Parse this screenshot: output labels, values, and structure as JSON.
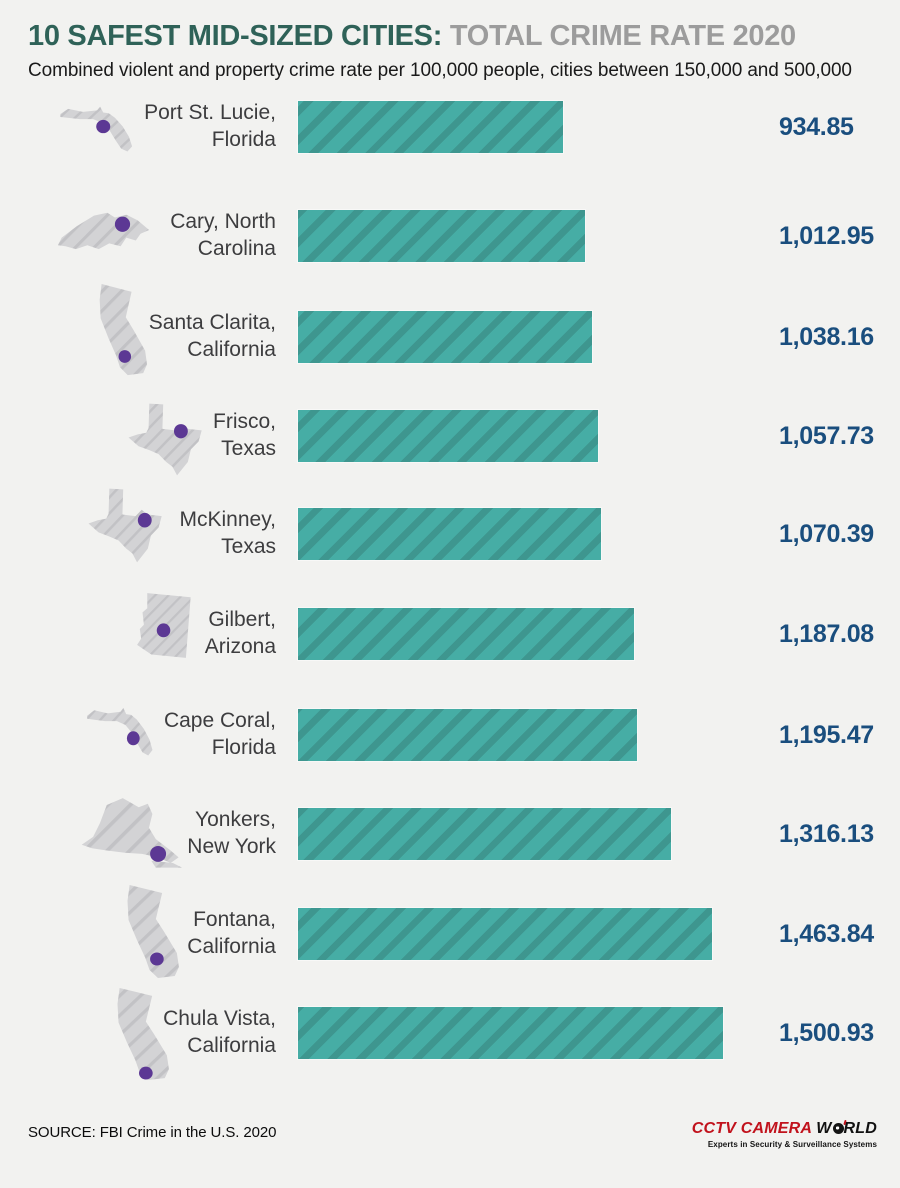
{
  "header": {
    "title_primary": "10 SAFEST MID-SIZED CITIES:",
    "title_secondary": " TOTAL CRIME RATE 2020",
    "subtitle": "Combined violent and property crime rate per 100,000 people, cities between 150,000 and 500,000",
    "title_primary_color": "#2f6258",
    "title_secondary_color": "#9c9c9c"
  },
  "chart_data": {
    "type": "bar",
    "orientation": "horizontal",
    "title": "10 SAFEST MID-SIZED CITIES: TOTAL CRIME RATE 2020",
    "subtitle": "Combined violent and property crime rate per 100,000 people, cities between 150,000 and 500,000",
    "xlabel": "",
    "ylabel": "",
    "xlim": [
      0,
      1500.93
    ],
    "grid": false,
    "legend": false,
    "categories": [
      "Port St. Lucie, Florida",
      "Cary, North Carolina",
      "Santa Clarita, California",
      "Frisco, Texas",
      "McKinney, Texas",
      "Gilbert, Arizona",
      "Cape Coral, Florida",
      "Yonkers, New York",
      "Fontana, California",
      "Chula Vista, California"
    ],
    "values": [
      934.85,
      1012.95,
      1038.16,
      1057.73,
      1070.39,
      1187.08,
      1195.47,
      1316.13,
      1463.84,
      1500.93
    ],
    "rows": [
      {
        "city_line1": "Port St. Lucie,",
        "city_line2": "Florida",
        "value": 934.85,
        "value_label": "934.85",
        "icon": "florida-map-icon"
      },
      {
        "city_line1": "Cary, North",
        "city_line2": "Carolina",
        "value": 1012.95,
        "value_label": "1,012.95",
        "icon": "north-carolina-map-icon"
      },
      {
        "city_line1": "Santa Clarita,",
        "city_line2": "California",
        "value": 1038.16,
        "value_label": "1,038.16",
        "icon": "california-map-icon"
      },
      {
        "city_line1": "Frisco,",
        "city_line2": "Texas",
        "value": 1057.73,
        "value_label": "1,057.73",
        "icon": "texas-map-icon"
      },
      {
        "city_line1": "McKinney,",
        "city_line2": "Texas",
        "value": 1070.39,
        "value_label": "1,070.39",
        "icon": "texas-map-icon"
      },
      {
        "city_line1": "Gilbert,",
        "city_line2": "Arizona",
        "value": 1187.08,
        "value_label": "1,187.08",
        "icon": "arizona-map-icon"
      },
      {
        "city_line1": "Cape Coral,",
        "city_line2": "Florida",
        "value": 1195.47,
        "value_label": "1,195.47",
        "icon": "florida-map-icon"
      },
      {
        "city_line1": "Yonkers,",
        "city_line2": "New York",
        "value": 1316.13,
        "value_label": "1,316.13",
        "icon": "new-york-map-icon"
      },
      {
        "city_line1": "Fontana,",
        "city_line2": "California",
        "value": 1463.84,
        "value_label": "1,463.84",
        "icon": "california-map-icon"
      },
      {
        "city_line1": "Chula Vista,",
        "city_line2": "California",
        "value": 1500.93,
        "value_label": "1,500.93",
        "icon": "california-map-icon"
      }
    ],
    "bar_color": "#46ada5",
    "bar_stripe_color": "#3e968f",
    "value_color": "#1a4e7e",
    "state_fill_color": "#d3d3d5",
    "state_hatch_color": "#c2c2c5",
    "city_dot_color": "#5c3894"
  },
  "footer": {
    "source": "SOURCE: FBI Crime in the U.S. 2020",
    "logo_text_red": "CCTV CAMERA",
    "logo_text_w": "W",
    "logo_text_rld": "RLD",
    "logo_tagline": "Experts in Security & Surveillance Systems",
    "logo_red_color": "#c1121c"
  }
}
